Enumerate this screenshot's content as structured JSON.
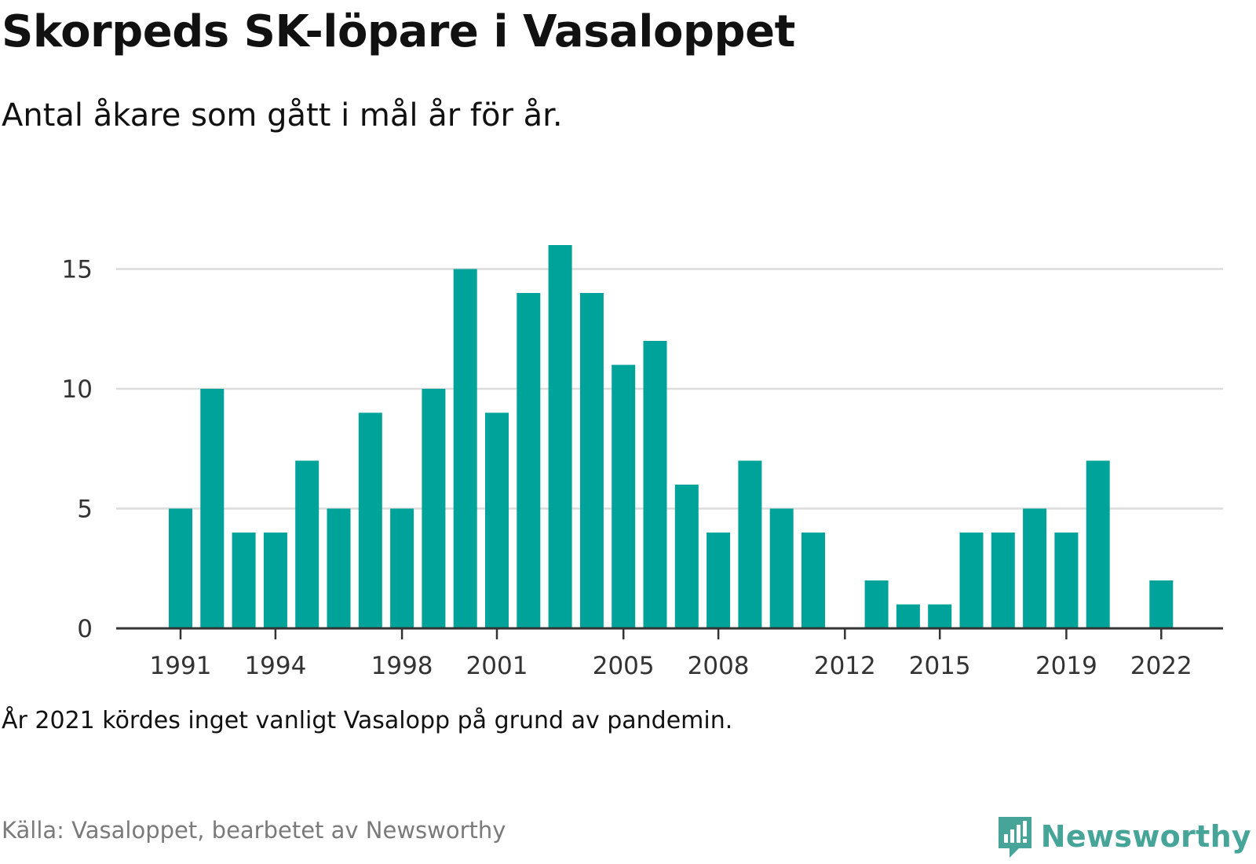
{
  "header": {
    "title": "Skorpeds SK-löpare i Vasaloppet",
    "subtitle": "Antal åkare som gått i mål år för år."
  },
  "footer": {
    "note": "År 2021 kördes inget vanligt Vasalopp på grund av pandemin.",
    "source": "Källa: Vasaloppet, bearbetet av Newsworthy",
    "brand": "Newsworthy"
  },
  "colors": {
    "bar": "#00a39a",
    "grid": "#dcdcdc",
    "axis": "#333333",
    "brand": "#46a598"
  },
  "chart_data": {
    "type": "bar",
    "categories": [
      "1991",
      "1992",
      "1993",
      "1994",
      "1995",
      "1996",
      "1997",
      "1998",
      "1999",
      "2000",
      "2001",
      "2002",
      "2003",
      "2004",
      "2005",
      "2006",
      "2007",
      "2008",
      "2009",
      "2010",
      "2011",
      "2012",
      "2013",
      "2014",
      "2015",
      "2016",
      "2017",
      "2018",
      "2019",
      "2020",
      "2021",
      "2022"
    ],
    "values": [
      5,
      10,
      4,
      4,
      7,
      5,
      9,
      5,
      10,
      15,
      9,
      14,
      16,
      14,
      11,
      12,
      6,
      4,
      7,
      5,
      4,
      0,
      2,
      1,
      1,
      4,
      4,
      5,
      4,
      7,
      0,
      2
    ],
    "x_tick_labels": [
      "1991",
      "1994",
      "1998",
      "2001",
      "2005",
      "2008",
      "2012",
      "2015",
      "2019",
      "2022"
    ],
    "y_ticks": [
      0,
      5,
      10,
      15
    ],
    "ylim": [
      0,
      16
    ],
    "grid": true,
    "legend": "none"
  }
}
